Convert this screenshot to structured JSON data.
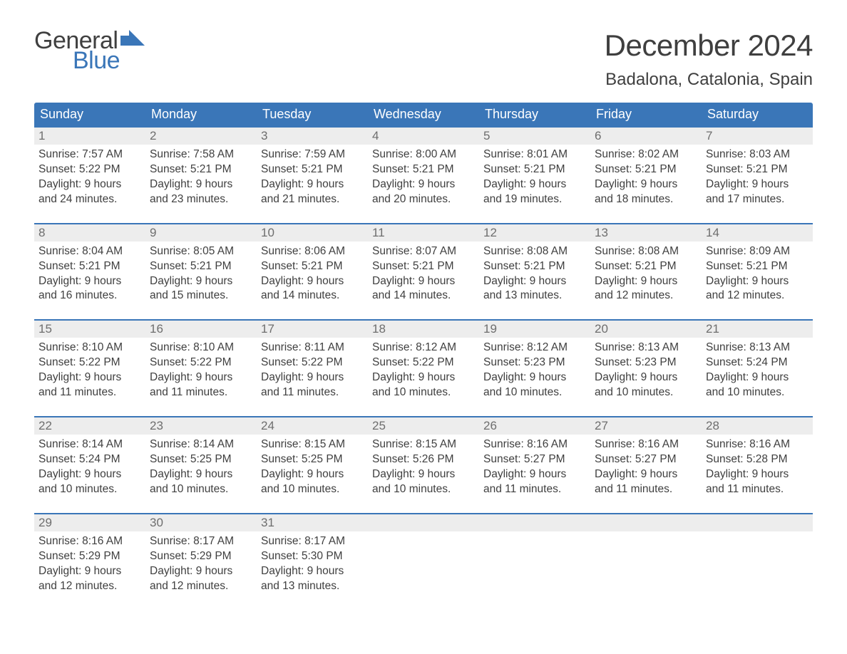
{
  "brand": {
    "word1": "General",
    "word2": "Blue",
    "color_primary": "#3a76b8",
    "color_text": "#3f3f3f"
  },
  "title": "December 2024",
  "subtitle": "Badalona, Catalonia, Spain",
  "layout": {
    "columns": 7,
    "rows": 5,
    "header_bg": "#3a76b8",
    "header_text_color": "#ffffff",
    "daynum_bg": "#ededed",
    "daynum_border_top": "#3a76b8",
    "body_bg": "#ffffff",
    "fontsize_title": 42,
    "fontsize_subtitle": 24,
    "fontsize_weekday": 18,
    "fontsize_daynum": 17,
    "fontsize_body": 15.5
  },
  "weekdays": [
    "Sunday",
    "Monday",
    "Tuesday",
    "Wednesday",
    "Thursday",
    "Friday",
    "Saturday"
  ],
  "days": [
    {
      "n": 1,
      "sunrise": "7:57 AM",
      "sunset": "5:22 PM",
      "dl1": "Daylight: 9 hours",
      "dl2": "and 24 minutes."
    },
    {
      "n": 2,
      "sunrise": "7:58 AM",
      "sunset": "5:21 PM",
      "dl1": "Daylight: 9 hours",
      "dl2": "and 23 minutes."
    },
    {
      "n": 3,
      "sunrise": "7:59 AM",
      "sunset": "5:21 PM",
      "dl1": "Daylight: 9 hours",
      "dl2": "and 21 minutes."
    },
    {
      "n": 4,
      "sunrise": "8:00 AM",
      "sunset": "5:21 PM",
      "dl1": "Daylight: 9 hours",
      "dl2": "and 20 minutes."
    },
    {
      "n": 5,
      "sunrise": "8:01 AM",
      "sunset": "5:21 PM",
      "dl1": "Daylight: 9 hours",
      "dl2": "and 19 minutes."
    },
    {
      "n": 6,
      "sunrise": "8:02 AM",
      "sunset": "5:21 PM",
      "dl1": "Daylight: 9 hours",
      "dl2": "and 18 minutes."
    },
    {
      "n": 7,
      "sunrise": "8:03 AM",
      "sunset": "5:21 PM",
      "dl1": "Daylight: 9 hours",
      "dl2": "and 17 minutes."
    },
    {
      "n": 8,
      "sunrise": "8:04 AM",
      "sunset": "5:21 PM",
      "dl1": "Daylight: 9 hours",
      "dl2": "and 16 minutes."
    },
    {
      "n": 9,
      "sunrise": "8:05 AM",
      "sunset": "5:21 PM",
      "dl1": "Daylight: 9 hours",
      "dl2": "and 15 minutes."
    },
    {
      "n": 10,
      "sunrise": "8:06 AM",
      "sunset": "5:21 PM",
      "dl1": "Daylight: 9 hours",
      "dl2": "and 14 minutes."
    },
    {
      "n": 11,
      "sunrise": "8:07 AM",
      "sunset": "5:21 PM",
      "dl1": "Daylight: 9 hours",
      "dl2": "and 14 minutes."
    },
    {
      "n": 12,
      "sunrise": "8:08 AM",
      "sunset": "5:21 PM",
      "dl1": "Daylight: 9 hours",
      "dl2": "and 13 minutes."
    },
    {
      "n": 13,
      "sunrise": "8:08 AM",
      "sunset": "5:21 PM",
      "dl1": "Daylight: 9 hours",
      "dl2": "and 12 minutes."
    },
    {
      "n": 14,
      "sunrise": "8:09 AM",
      "sunset": "5:21 PM",
      "dl1": "Daylight: 9 hours",
      "dl2": "and 12 minutes."
    },
    {
      "n": 15,
      "sunrise": "8:10 AM",
      "sunset": "5:22 PM",
      "dl1": "Daylight: 9 hours",
      "dl2": "and 11 minutes."
    },
    {
      "n": 16,
      "sunrise": "8:10 AM",
      "sunset": "5:22 PM",
      "dl1": "Daylight: 9 hours",
      "dl2": "and 11 minutes."
    },
    {
      "n": 17,
      "sunrise": "8:11 AM",
      "sunset": "5:22 PM",
      "dl1": "Daylight: 9 hours",
      "dl2": "and 11 minutes."
    },
    {
      "n": 18,
      "sunrise": "8:12 AM",
      "sunset": "5:22 PM",
      "dl1": "Daylight: 9 hours",
      "dl2": "and 10 minutes."
    },
    {
      "n": 19,
      "sunrise": "8:12 AM",
      "sunset": "5:23 PM",
      "dl1": "Daylight: 9 hours",
      "dl2": "and 10 minutes."
    },
    {
      "n": 20,
      "sunrise": "8:13 AM",
      "sunset": "5:23 PM",
      "dl1": "Daylight: 9 hours",
      "dl2": "and 10 minutes."
    },
    {
      "n": 21,
      "sunrise": "8:13 AM",
      "sunset": "5:24 PM",
      "dl1": "Daylight: 9 hours",
      "dl2": "and 10 minutes."
    },
    {
      "n": 22,
      "sunrise": "8:14 AM",
      "sunset": "5:24 PM",
      "dl1": "Daylight: 9 hours",
      "dl2": "and 10 minutes."
    },
    {
      "n": 23,
      "sunrise": "8:14 AM",
      "sunset": "5:25 PM",
      "dl1": "Daylight: 9 hours",
      "dl2": "and 10 minutes."
    },
    {
      "n": 24,
      "sunrise": "8:15 AM",
      "sunset": "5:25 PM",
      "dl1": "Daylight: 9 hours",
      "dl2": "and 10 minutes."
    },
    {
      "n": 25,
      "sunrise": "8:15 AM",
      "sunset": "5:26 PM",
      "dl1": "Daylight: 9 hours",
      "dl2": "and 10 minutes."
    },
    {
      "n": 26,
      "sunrise": "8:16 AM",
      "sunset": "5:27 PM",
      "dl1": "Daylight: 9 hours",
      "dl2": "and 11 minutes."
    },
    {
      "n": 27,
      "sunrise": "8:16 AM",
      "sunset": "5:27 PM",
      "dl1": "Daylight: 9 hours",
      "dl2": "and 11 minutes."
    },
    {
      "n": 28,
      "sunrise": "8:16 AM",
      "sunset": "5:28 PM",
      "dl1": "Daylight: 9 hours",
      "dl2": "and 11 minutes."
    },
    {
      "n": 29,
      "sunrise": "8:16 AM",
      "sunset": "5:29 PM",
      "dl1": "Daylight: 9 hours",
      "dl2": "and 12 minutes."
    },
    {
      "n": 30,
      "sunrise": "8:17 AM",
      "sunset": "5:29 PM",
      "dl1": "Daylight: 9 hours",
      "dl2": "and 12 minutes."
    },
    {
      "n": 31,
      "sunrise": "8:17 AM",
      "sunset": "5:30 PM",
      "dl1": "Daylight: 9 hours",
      "dl2": "and 13 minutes."
    }
  ],
  "labels": {
    "sunrise_prefix": "Sunrise: ",
    "sunset_prefix": "Sunset: "
  }
}
